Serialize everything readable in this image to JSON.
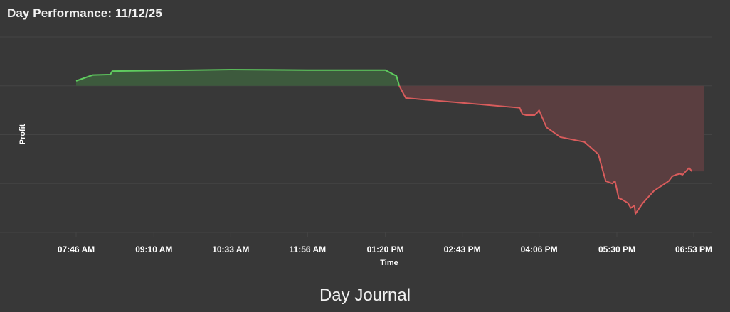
{
  "header": {
    "title": "Day Performance: 11/12/25"
  },
  "footer": {
    "title": "Day Journal"
  },
  "colors": {
    "background": "#383838",
    "gridline": "#444444",
    "positive_line": "#5fcc5f",
    "positive_fill": "#3d5a3d",
    "negative_line": "#d95c5c",
    "negative_fill": "#5a3e40"
  },
  "chart_data": {
    "type": "area",
    "title": "Day Performance: 11/12/25",
    "xlabel": "Time",
    "ylabel": "Profit",
    "x_tick_labels": [
      "07:46 AM",
      "09:10 AM",
      "10:33 AM",
      "11:56 AM",
      "01:20 PM",
      "02:43 PM",
      "04:06 PM",
      "05:30 PM",
      "06:53 PM"
    ],
    "x_tick_minutes": [
      466,
      550,
      633,
      716,
      800,
      883,
      966,
      1050,
      1133
    ],
    "ylim": [
      -300,
      100
    ],
    "grid": true,
    "series": [
      {
        "x_minutes": [
          466,
          484,
          503,
          505,
          550,
          633,
          716,
          800,
          812,
          815,
          822,
          945,
          948,
          952,
          961,
          964,
          966,
          974,
          989,
          1015,
          1030,
          1035,
          1038,
          1045,
          1048,
          1052,
          1055,
          1062,
          1065,
          1069,
          1070,
          1078,
          1090,
          1106,
          1110,
          1114,
          1118,
          1121,
          1128,
          1131
        ],
        "y": [
          10,
          22,
          23,
          30,
          31,
          33,
          32,
          32,
          20,
          0,
          -25,
          -45,
          -58,
          -60,
          -60,
          -55,
          -50,
          -85,
          -105,
          -115,
          -140,
          -175,
          -195,
          -200,
          -195,
          -230,
          -232,
          -240,
          -250,
          -245,
          -262,
          -240,
          -215,
          -195,
          -185,
          -182,
          -180,
          -182,
          -168,
          -175
        ]
      }
    ]
  }
}
